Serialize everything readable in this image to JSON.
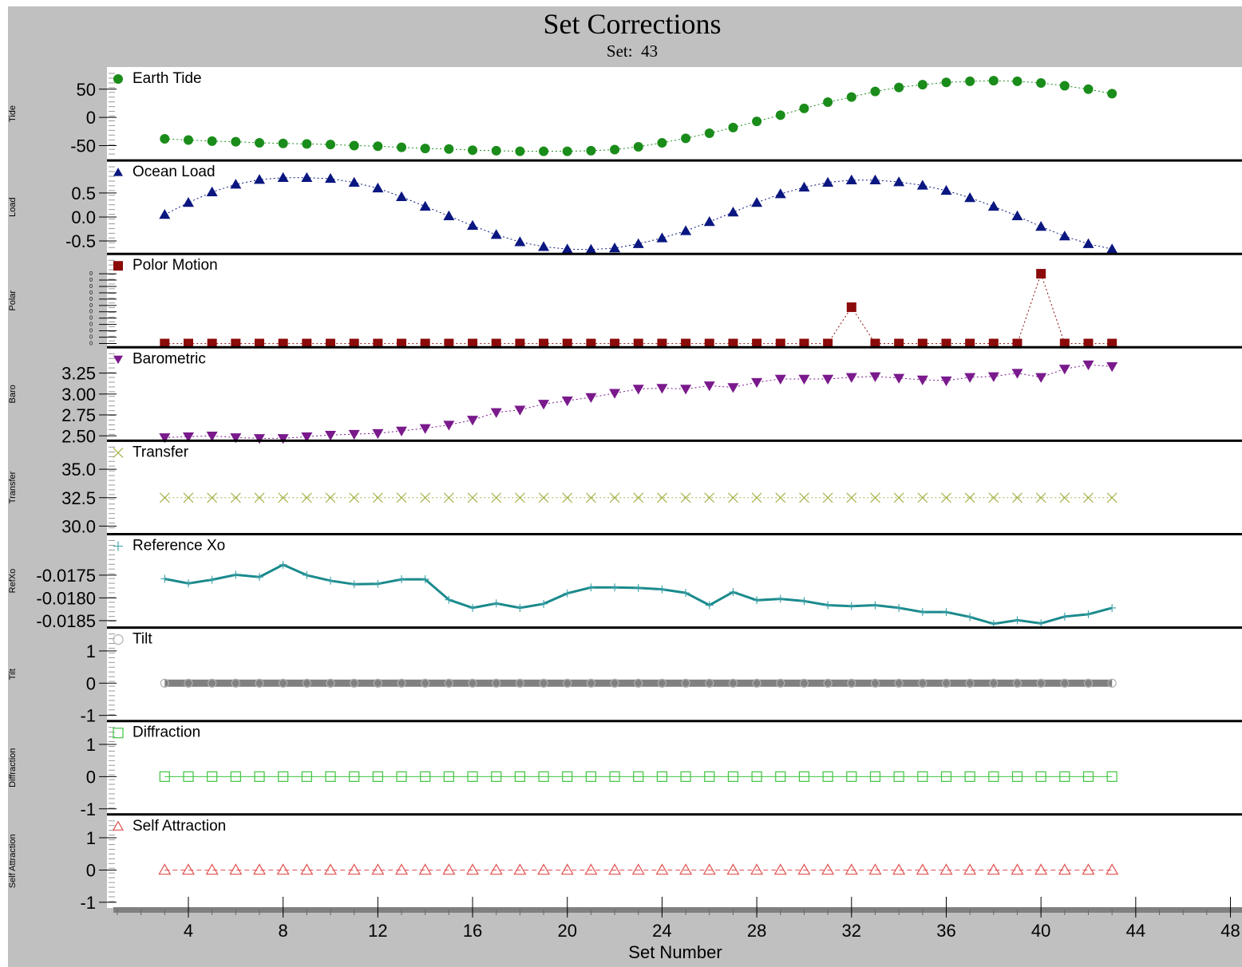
{
  "header": {
    "title": "Set Corrections",
    "subtitle": "Set:  43"
  },
  "colors": {
    "frame_background": "#c0c0c0",
    "plot_background": "#ffffff",
    "divider": "#000000"
  },
  "chart_data": {
    "type": "scatter",
    "xlabel": "Set Number",
    "xlim": [
      0,
      48
    ],
    "xticks": [
      "4",
      "8",
      "12",
      "16",
      "20",
      "24",
      "28",
      "32",
      "36",
      "40",
      "44",
      "48"
    ],
    "x": [
      3,
      4,
      5,
      6,
      7,
      8,
      9,
      10,
      11,
      12,
      13,
      14,
      15,
      16,
      17,
      18,
      19,
      20,
      21,
      22,
      23,
      24,
      25,
      26,
      27,
      28,
      29,
      30,
      31,
      32,
      33,
      34,
      35,
      36,
      37,
      38,
      39,
      40,
      41,
      42,
      43
    ],
    "panels": [
      {
        "ylabel": "Tide",
        "legend": "Earth Tide",
        "marker": "circle",
        "line": "dotted",
        "color": "#1a8c1a",
        "ylim": [
          -72,
          85
        ],
        "yticks": [
          "50",
          "0",
          "-50"
        ],
        "ytick_values": [
          50,
          0,
          -50
        ],
        "values": [
          -38,
          -40,
          -42,
          -43,
          -45,
          -46,
          -47,
          -48,
          -50,
          -51,
          -53,
          -55,
          -56,
          -58,
          -59,
          -60,
          -60,
          -60,
          -59,
          -57,
          -52,
          -45,
          -37,
          -28,
          -18,
          -7,
          4,
          16,
          27,
          36,
          46,
          53,
          58,
          62,
          64,
          65,
          64,
          61,
          56,
          50,
          42
        ]
      },
      {
        "ylabel": "Load",
        "legend": "Ocean Load",
        "marker": "triangle-up",
        "line": "dotted",
        "color": "#0b1780",
        "ylim": [
          -0.72,
          1.13
        ],
        "yticks": [
          "0.5",
          "0.0",
          "-0.5"
        ],
        "ytick_values": [
          0.5,
          0.0,
          -0.5
        ],
        "values": [
          0.05,
          0.3,
          0.52,
          0.68,
          0.78,
          0.82,
          0.82,
          0.8,
          0.72,
          0.6,
          0.42,
          0.22,
          0.02,
          -0.18,
          -0.37,
          -0.52,
          -0.62,
          -0.67,
          -0.68,
          -0.65,
          -0.56,
          -0.44,
          -0.29,
          -0.1,
          0.1,
          0.3,
          0.48,
          0.62,
          0.72,
          0.77,
          0.77,
          0.73,
          0.66,
          0.55,
          0.4,
          0.22,
          0.02,
          -0.2,
          -0.4,
          -0.56,
          -0.67
        ]
      },
      {
        "ylabel": "Polar",
        "legend": "Polor Motion",
        "marker": "square",
        "line": "dotted",
        "color": "#8b0a0a",
        "ylim": [
          -0.02,
          1.25
        ],
        "yticks": [
          "0",
          "0",
          "0",
          "0",
          "0",
          "0",
          "0",
          "0",
          "0",
          "0",
          "0",
          "0"
        ],
        "ytick_values": [
          0,
          0.091,
          0.182,
          0.273,
          0.364,
          0.455,
          0.545,
          0.636,
          0.727,
          0.818,
          0.909,
          1.0
        ],
        "values": [
          0,
          0,
          0,
          0,
          0,
          0,
          0,
          0,
          0,
          0,
          0,
          0,
          0,
          0,
          0,
          0,
          0,
          0,
          0,
          0,
          0,
          0,
          0,
          0,
          0,
          0,
          0,
          0,
          0,
          0.52,
          0,
          0,
          0,
          0,
          0,
          0,
          0,
          1.0,
          0,
          0,
          0
        ]
      },
      {
        "ylabel": "Baro",
        "legend": "Barometric",
        "marker": "triangle-down",
        "line": "dotted",
        "color": "#7a1a8c",
        "ylim": [
          2.47,
          3.53
        ],
        "yticks": [
          "3.25",
          "3.00",
          "2.75",
          "2.50"
        ],
        "ytick_values": [
          3.25,
          3.0,
          2.75,
          2.5
        ],
        "values": [
          2.48,
          2.49,
          2.5,
          2.48,
          2.47,
          2.47,
          2.49,
          2.51,
          2.52,
          2.53,
          2.56,
          2.59,
          2.63,
          2.69,
          2.78,
          2.81,
          2.88,
          2.92,
          2.96,
          3.01,
          3.06,
          3.07,
          3.06,
          3.1,
          3.08,
          3.14,
          3.18,
          3.18,
          3.18,
          3.2,
          3.21,
          3.19,
          3.17,
          3.16,
          3.2,
          3.21,
          3.25,
          3.2,
          3.3,
          3.35,
          3.33
        ]
      },
      {
        "ylabel": "Transfer",
        "legend": "Transfer",
        "marker": "x",
        "line": "dotted",
        "color": "#a8b24a",
        "ylim": [
          29.5,
          37.3
        ],
        "yticks": [
          "35.0",
          "32.5",
          "30.0"
        ],
        "ytick_values": [
          35.0,
          32.5,
          30.0
        ],
        "values": [
          32.5,
          32.5,
          32.5,
          32.5,
          32.5,
          32.5,
          32.5,
          32.5,
          32.5,
          32.5,
          32.5,
          32.5,
          32.5,
          32.5,
          32.5,
          32.5,
          32.5,
          32.5,
          32.5,
          32.5,
          32.5,
          32.5,
          32.5,
          32.5,
          32.5,
          32.5,
          32.5,
          32.5,
          32.5,
          32.5,
          32.5,
          32.5,
          32.5,
          32.5,
          32.5,
          32.5,
          32.5,
          32.5,
          32.5,
          32.5,
          32.5
        ]
      },
      {
        "ylabel": "RefXo",
        "legend": "Reference Xo",
        "marker": "plus",
        "line": "solid",
        "color": "#1a8a8c",
        "ylim": [
          -0.0186,
          -0.01665
        ],
        "yticks": [
          "-0.0175",
          "-0.0180",
          "-0.0185"
        ],
        "ytick_values": [
          -0.0175,
          -0.018,
          -0.0185
        ],
        "values": [
          -0.01758,
          -0.01768,
          -0.0176,
          -0.01749,
          -0.01754,
          -0.01727,
          -0.0175,
          -0.01762,
          -0.0177,
          -0.01769,
          -0.01759,
          -0.01759,
          -0.01804,
          -0.01822,
          -0.01812,
          -0.01822,
          -0.01813,
          -0.0179,
          -0.01777,
          -0.01777,
          -0.01778,
          -0.01781,
          -0.01789,
          -0.01816,
          -0.01787,
          -0.01805,
          -0.01802,
          -0.01807,
          -0.01816,
          -0.01818,
          -0.01816,
          -0.01822,
          -0.01831,
          -0.01831,
          -0.01842,
          -0.01857,
          -0.01849,
          -0.01856,
          -0.01841,
          -0.01836,
          -0.01822
        ]
      },
      {
        "ylabel": "Tilt",
        "legend": "Tilt",
        "marker": "circle-open",
        "line": "thick",
        "color": "#808080",
        "ylim": [
          -1.1,
          1.65
        ],
        "yticks": [
          "1",
          "0",
          "-1"
        ],
        "ytick_values": [
          1,
          0,
          -1
        ],
        "values": [
          0,
          0,
          0,
          0,
          0,
          0,
          0,
          0,
          0,
          0,
          0,
          0,
          0,
          0,
          0,
          0,
          0,
          0,
          0,
          0,
          0,
          0,
          0,
          0,
          0,
          0,
          0,
          0,
          0,
          0,
          0,
          0,
          0,
          0,
          0,
          0,
          0,
          0,
          0,
          0,
          0
        ]
      },
      {
        "ylabel": "Diffraction",
        "legend": "Diffraction",
        "marker": "square-open",
        "line": "solid",
        "color": "#3fc43f",
        "ylim": [
          -1.1,
          1.65
        ],
        "yticks": [
          "1",
          "0",
          "-1"
        ],
        "ytick_values": [
          1,
          0,
          -1
        ],
        "values": [
          0,
          0,
          0,
          0,
          0,
          0,
          0,
          0,
          0,
          0,
          0,
          0,
          0,
          0,
          0,
          0,
          0,
          0,
          0,
          0,
          0,
          0,
          0,
          0,
          0,
          0,
          0,
          0,
          0,
          0,
          0,
          0,
          0,
          0,
          0,
          0,
          0,
          0,
          0,
          0,
          0
        ]
      },
      {
        "ylabel": "Self Attraction",
        "legend": "Self Attraction",
        "marker": "triangle-open",
        "line": "dashed",
        "color": "#e05050",
        "ylim": [
          -1.1,
          1.65
        ],
        "yticks": [
          "1",
          "0",
          "-1"
        ],
        "ytick_values": [
          1,
          0,
          -1
        ],
        "values": [
          0,
          0,
          0,
          0,
          0,
          0,
          0,
          0,
          0,
          0,
          0,
          0,
          0,
          0,
          0,
          0,
          0,
          0,
          0,
          0,
          0,
          0,
          0,
          0,
          0,
          0,
          0,
          0,
          0,
          0,
          0,
          0,
          0,
          0,
          0,
          0,
          0,
          0,
          0,
          0,
          0
        ]
      }
    ]
  }
}
